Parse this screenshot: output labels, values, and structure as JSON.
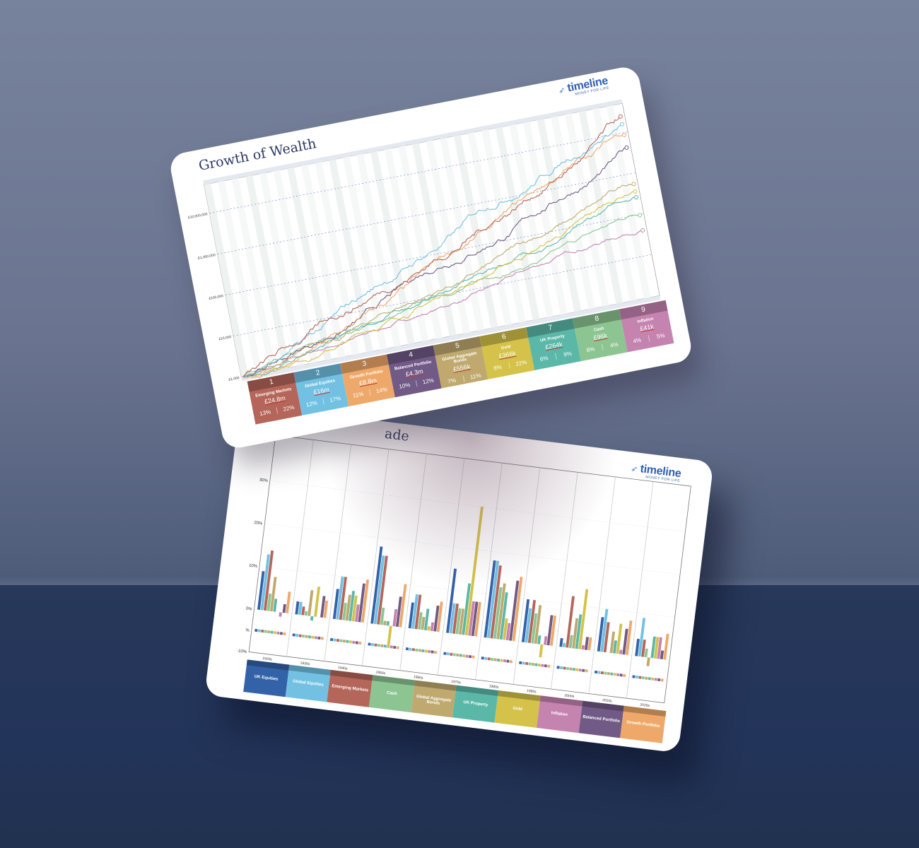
{
  "brand": {
    "name": "timeline",
    "tagline": "MONEY FOR LIFE",
    "color": "#2f5fae"
  },
  "chart_data": [
    {
      "type": "line",
      "title": "Growth of Wealth",
      "yscale": "log",
      "yticks": [
        "£1,000",
        "£10,000",
        "£100,000",
        "£1,000,000",
        "£10,000,000"
      ],
      "ylim": [
        1000,
        45000000
      ],
      "grid": "horizontal dashed",
      "series": [
        {
          "rank": "1",
          "name": "Emerging Markets",
          "final": "£24.8m",
          "values": [
            1000,
            24800000
          ],
          "pct_a": "13%",
          "pct_b": "22%",
          "color": "#b5665a"
        },
        {
          "rank": "2",
          "name": "Global Equities",
          "final": "£16m",
          "values": [
            1000,
            16000000
          ],
          "pct_a": "12%",
          "pct_b": "17%",
          "color": "#72c1e3"
        },
        {
          "rank": "3",
          "name": "Growth Portfolio",
          "final": "£8.8m",
          "values": [
            1000,
            8800000
          ],
          "pct_a": "11%",
          "pct_b": "14%",
          "color": "#eea96a"
        },
        {
          "rank": "4",
          "name": "Balanced Portfolio",
          "final": "£4.3m",
          "values": [
            1000,
            4300000
          ],
          "pct_a": "10%",
          "pct_b": "12%",
          "color": "#715a86"
        },
        {
          "rank": "5",
          "name": "Global Aggregate Bonds",
          "final": "£556k",
          "values": [
            1000,
            556000
          ],
          "pct_a": "7%",
          "pct_b": "11%",
          "color": "#bfa96f"
        },
        {
          "rank": "6",
          "name": "Gold",
          "final": "£366k",
          "values": [
            1000,
            366000
          ],
          "pct_a": "8%",
          "pct_b": "22%",
          "color": "#d4c24a"
        },
        {
          "rank": "7",
          "name": "UK Property",
          "final": "£264k",
          "values": [
            1000,
            264000
          ],
          "pct_a": "6%",
          "pct_b": "9%",
          "color": "#5bb8a8"
        },
        {
          "rank": "8",
          "name": "Cash",
          "final": "£96k",
          "values": [
            1000,
            96000
          ],
          "pct_a": "8%",
          "pct_b": "4%",
          "color": "#8cc592"
        },
        {
          "rank": "9",
          "name": "Inflation",
          "final": "£41k",
          "values": [
            1000,
            41000
          ],
          "pct_a": "4%",
          "pct_b": "5%",
          "color": "#c583b0"
        }
      ]
    },
    {
      "type": "bar",
      "title": "ade",
      "yticks": [
        "30%",
        "20%",
        "10%",
        "0%",
        "%",
        "-10%"
      ],
      "ylim": [
        -10,
        30
      ],
      "categories": [
        "1920s",
        "1930s",
        "1940s",
        "1950s",
        "1960s",
        "1970s",
        "1980s",
        "1990s",
        "2000s",
        "2010s",
        "2020s"
      ],
      "series": [
        {
          "name": "UK Equities",
          "color": "#3362a8",
          "values": [
            9,
            3,
            7,
            18,
            6,
            15,
            18,
            10,
            2,
            8,
            4
          ]
        },
        {
          "name": "Global Equities",
          "color": "#72c1e3",
          "values": [
            13,
            3,
            10,
            16,
            8,
            7,
            18,
            8,
            1,
            10,
            9
          ]
        },
        {
          "name": "Emerging Markets",
          "color": "#b5665a",
          "values": [
            14,
            2,
            10,
            16,
            8,
            7,
            17,
            10,
            12,
            7,
            4
          ]
        },
        {
          "name": "Cash",
          "color": "#8cc592",
          "values": [
            4,
            1,
            4,
            4,
            4,
            6,
            12,
            7,
            3,
            0,
            2
          ]
        },
        {
          "name": "Global Aggregate Bonds",
          "color": "#bfa96f",
          "values": [
            8,
            6,
            6,
            1,
            3,
            6,
            13,
            9,
            7,
            5,
            -2
          ]
        },
        {
          "name": "UK Property",
          "color": "#5bb8a8",
          "values": [
            3,
            -1,
            7,
            1,
            5,
            12,
            11,
            2,
            8,
            3,
            5
          ]
        },
        {
          "name": "Gold",
          "color": "#d4c24a",
          "values": [
            0,
            7,
            6,
            -5,
            1,
            30,
            5,
            -3,
            14,
            7,
            5
          ]
        },
        {
          "name": "Inflation",
          "color": "#c583b0",
          "values": [
            -1,
            0,
            4,
            4,
            2,
            8,
            4,
            2,
            1,
            1,
            5
          ]
        },
        {
          "name": "Balanced Portfolio",
          "color": "#715a86",
          "values": [
            2,
            5,
            9,
            7,
            6,
            8,
            14,
            7,
            3,
            6,
            2
          ]
        },
        {
          "name": "Growth Portfolio",
          "color": "#eea96a",
          "values": [
            5,
            4,
            10,
            10,
            7,
            8,
            15,
            7,
            3,
            8,
            6
          ]
        }
      ]
    }
  ]
}
